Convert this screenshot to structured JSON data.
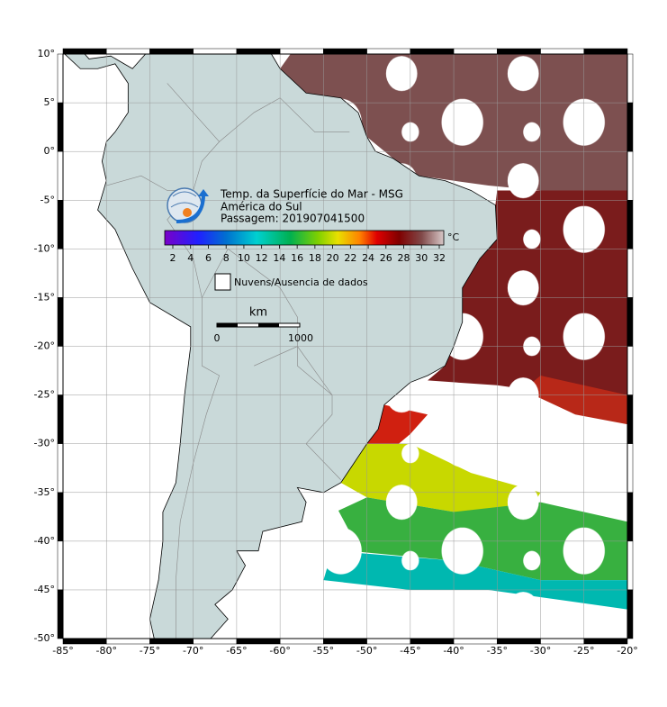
{
  "map": {
    "title_lines": [
      "Temp. da Superfície do Mar - MSG",
      "América do Sul",
      "Passagem: 201907041500"
    ],
    "colorbar": {
      "unit": "°C",
      "ticks": [
        2,
        4,
        6,
        8,
        10,
        12,
        14,
        16,
        18,
        20,
        22,
        24,
        26,
        28,
        30,
        32
      ]
    },
    "legend": "Nuvens/Ausencia de dados",
    "scale_bar": {
      "unit": "km",
      "labels": [
        "0",
        "1000"
      ]
    },
    "x_axis": {
      "ticks": [
        "-85°",
        "-80°",
        "-75°",
        "-70°",
        "-65°",
        "-60°",
        "-55°",
        "-50°",
        "-45°",
        "-40°",
        "-35°",
        "-30°",
        "-25°",
        "-20°"
      ]
    },
    "y_axis": {
      "ticks": [
        "10°",
        "5°",
        "0°",
        "-5°",
        "-10°",
        "-15°",
        "-20°",
        "-25°",
        "-30°",
        "-35°",
        "-40°",
        "-45°",
        "-50°"
      ]
    }
  }
}
